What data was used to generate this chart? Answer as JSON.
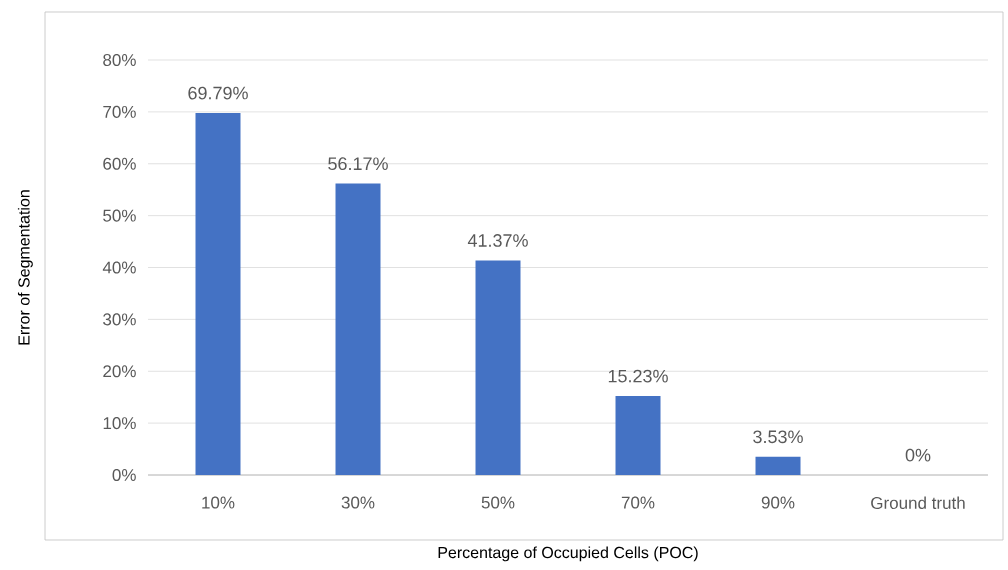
{
  "chart_data": {
    "type": "bar",
    "xlabel": "Percentage of Occupied Cells (POC)",
    "ylabel": "Error of Segmentation",
    "categories": [
      "10%",
      "30%",
      "50%",
      "70%",
      "90%",
      "Ground truth"
    ],
    "values": [
      69.79,
      56.17,
      41.37,
      15.23,
      3.53,
      0
    ],
    "value_labels": [
      "69.79%",
      "56.17%",
      "41.37%",
      "15.23%",
      "3.53%",
      "0%"
    ],
    "color": "#4472c4",
    "ylim": [
      0,
      80
    ],
    "yticks": [
      {
        "value": 0,
        "label": "0%"
      },
      {
        "value": 10,
        "label": "10%"
      },
      {
        "value": 20,
        "label": "20%"
      },
      {
        "value": 30,
        "label": "30%"
      },
      {
        "value": 40,
        "label": "40%"
      },
      {
        "value": 50,
        "label": "50%"
      },
      {
        "value": 60,
        "label": "60%"
      },
      {
        "value": 70,
        "label": "70%"
      },
      {
        "value": 80,
        "label": "80%"
      }
    ],
    "grid": "y"
  }
}
